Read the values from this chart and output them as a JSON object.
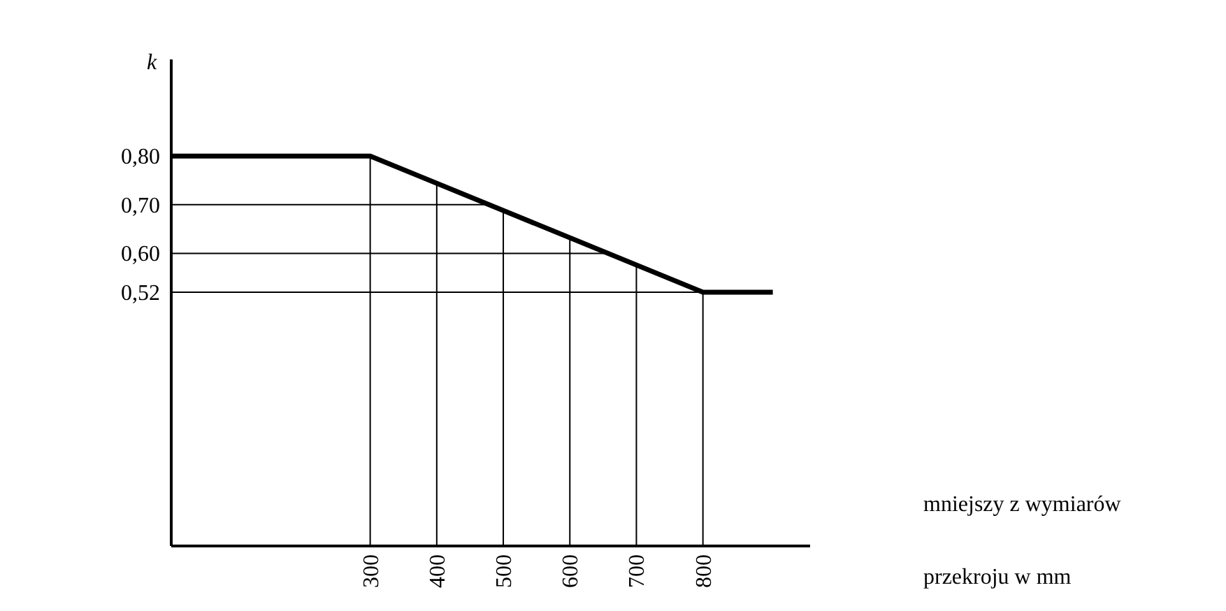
{
  "chart_data": {
    "type": "line",
    "xlabel": "mniejszy z wymiarów przekroju w mm",
    "ylabel": "k",
    "x": [
      0,
      300,
      800,
      905
    ],
    "series": [
      {
        "color": "#000000",
        "values": [
          0.8,
          0.8,
          0.52,
          0.52
        ]
      }
    ],
    "xlim": [
      0,
      960
    ],
    "xticks": [
      300,
      400,
      500,
      600,
      700,
      800
    ],
    "ylim": [
      0,
      1
    ],
    "yticks": [
      {
        "value": 0.52,
        "label": "0,52"
      },
      {
        "value": 0.6,
        "label": "0,60"
      },
      {
        "value": 0.7,
        "label": "0,70"
      },
      {
        "value": 0.8,
        "label": "0,80"
      }
    ],
    "ref_lines": [
      {
        "axis": "x",
        "value": 300
      },
      {
        "axis": "x",
        "value": 400
      },
      {
        "axis": "x",
        "value": 500
      },
      {
        "axis": "x",
        "value": 600
      },
      {
        "axis": "x",
        "value": 700
      },
      {
        "axis": "x",
        "value": 800
      },
      {
        "axis": "y",
        "value": 0.52
      },
      {
        "axis": "y",
        "value": 0.6
      },
      {
        "axis": "y",
        "value": 0.7
      }
    ],
    "marker": "none",
    "line_style": "solid"
  }
}
